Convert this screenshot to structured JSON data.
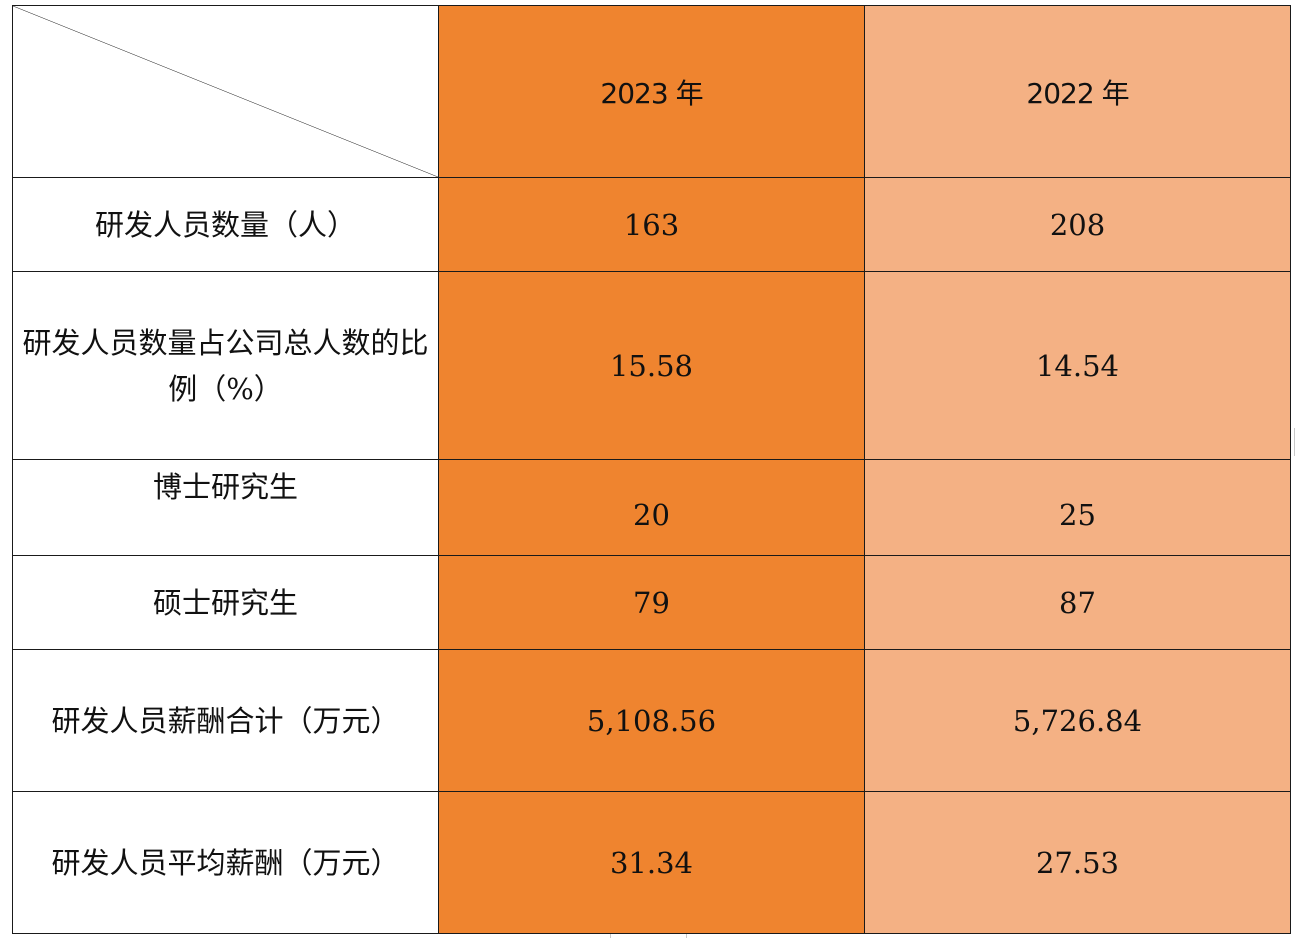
{
  "table": {
    "headers": {
      "col_2023": "2023 年",
      "col_2022": "2022 年"
    },
    "rows": [
      {
        "label": "研发人员数量（人）",
        "v2023": "163",
        "v2022": "208"
      },
      {
        "label": "研发人员数量占公司总人数的比例（%）",
        "v2023": "15.58",
        "v2022": "14.54"
      },
      {
        "label": "博士研究生",
        "v2023": "20",
        "v2022": "25"
      },
      {
        "label": "硕士研究生",
        "v2023": "79",
        "v2022": "87"
      },
      {
        "label": "研发人员薪酬合计（万元）",
        "v2023": "5,108.56",
        "v2022": "5,726.84"
      },
      {
        "label": "研发人员平均薪酬（万元）",
        "v2023": "31.34",
        "v2022": "27.53"
      }
    ]
  },
  "colors": {
    "col_2023_fill": "#ef842f",
    "col_2022_fill": "#f4b184",
    "border": "#1a1a1a"
  }
}
